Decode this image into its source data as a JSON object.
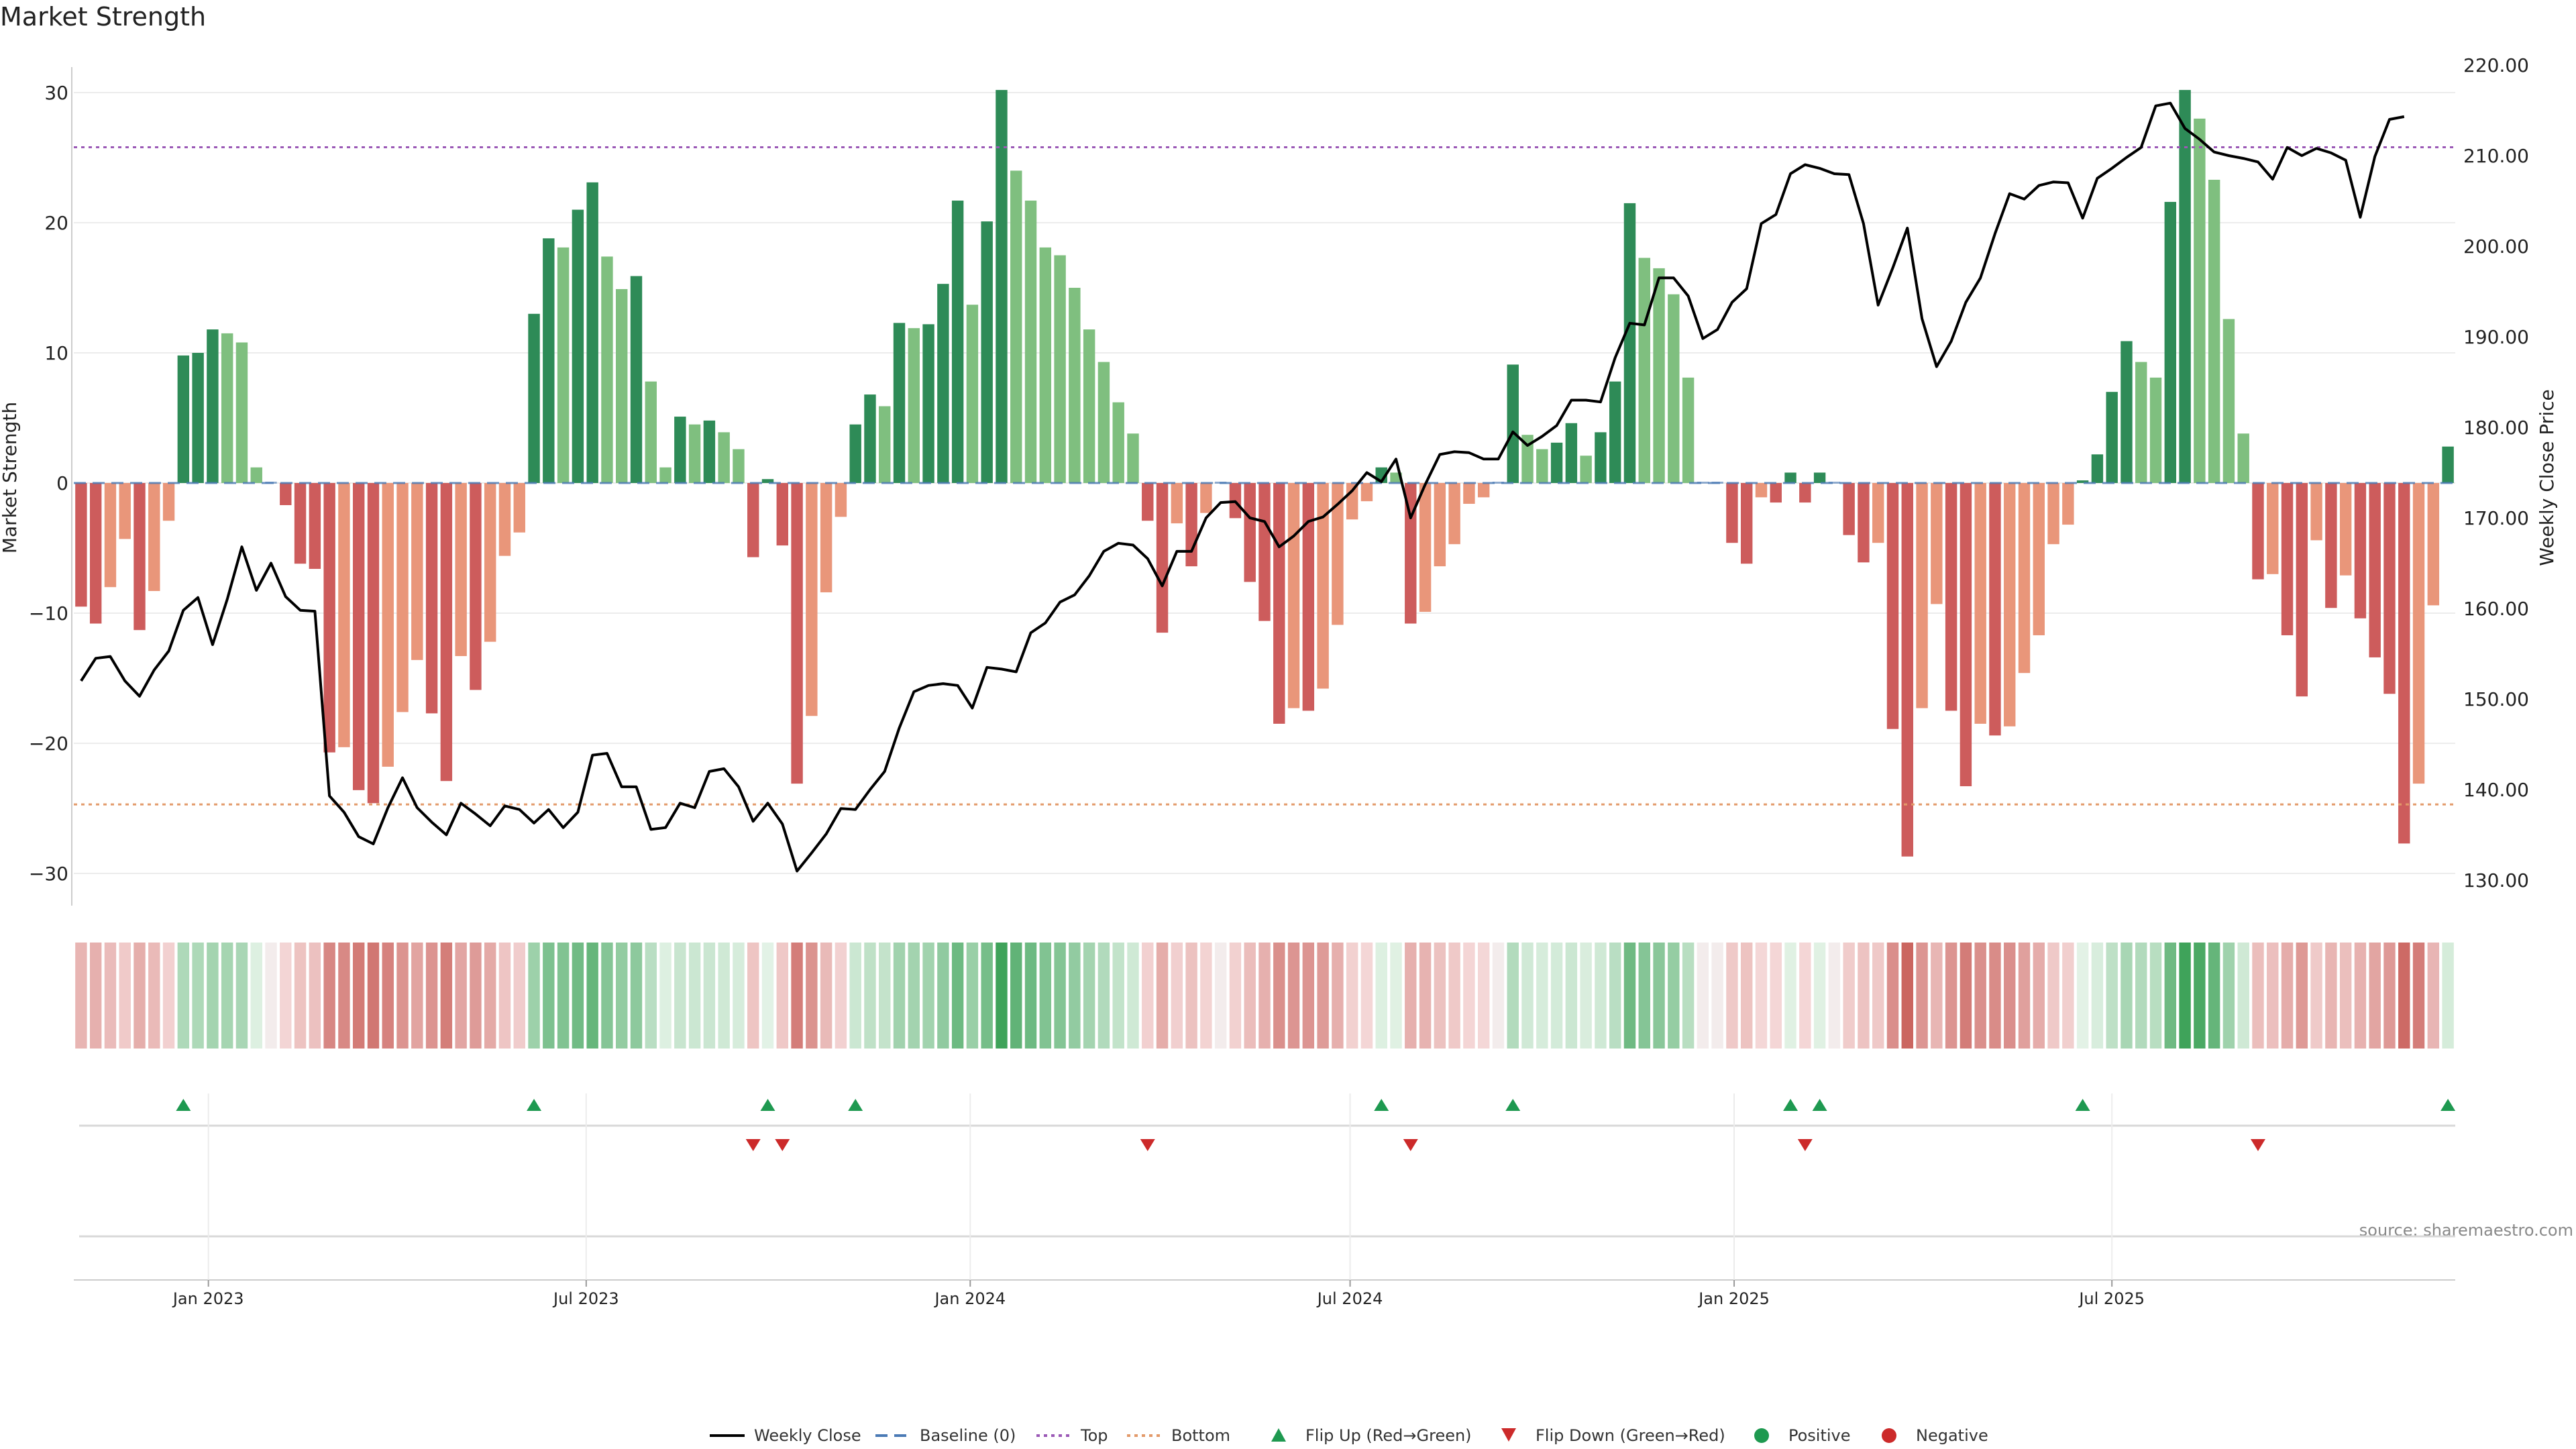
{
  "chart_data": {
    "type": "bar",
    "title": "Market Strength",
    "ylabel": "Market Strength",
    "y2label": "Weekly Close Price",
    "ylim": [
      -32,
      31
    ],
    "y2lim": [
      129,
      220
    ],
    "yticks": [
      "30",
      "20",
      "10",
      "0",
      "−10",
      "−20",
      "−30"
    ],
    "y2ticks": [
      "220.00",
      "210.00",
      "200.00",
      "190.00",
      "180.00",
      "170.00",
      "160.00",
      "150.00",
      "140.00",
      "130.00"
    ],
    "xticks": [
      "Jan 2023",
      "Jul 2023",
      "Jan 2024",
      "Jul 2024",
      "Jan 2025",
      "Jul 2025"
    ],
    "top_level": 25.8,
    "bottom_level": -24.7,
    "source": "source: sharemaestro.com",
    "colors": {
      "strong_pos": "#2e8b57",
      "weak_pos": "#7fbf7f",
      "strong_neg": "#cd5c5c",
      "weak_neg": "#e9967a",
      "price": "#000000",
      "baseline": "#4a7ab5",
      "top": "#9b59b6",
      "bottom": "#e39a6a",
      "flip_up": "#1e9950",
      "flip_down": "#cc2a2a"
    },
    "strength": [
      -9.5,
      -10.8,
      -8.0,
      -4.3,
      -11.3,
      -8.3,
      -2.9,
      9.8,
      10.0,
      11.8,
      11.5,
      10.8,
      1.2,
      0,
      -1.7,
      -6.2,
      -6.6,
      -20.7,
      -20.3,
      -23.6,
      -24.6,
      -21.8,
      -17.6,
      -13.6,
      -17.7,
      -22.9,
      -13.3,
      -15.9,
      -12.2,
      -5.6,
      -3.8,
      13.0,
      18.8,
      18.1,
      21.0,
      23.1,
      17.4,
      14.9,
      15.9,
      7.8,
      1.2,
      5.1,
      4.5,
      4.8,
      3.9,
      2.6,
      -5.7,
      0.3,
      -4.8,
      -23.1,
      -17.9,
      -8.4,
      -2.6,
      4.5,
      6.8,
      5.9,
      12.3,
      11.9,
      12.2,
      15.3,
      21.7,
      13.7,
      20.1,
      30.2,
      24.0,
      21.7,
      18.1,
      17.5,
      15.0,
      11.8,
      9.3,
      6.2,
      3.8,
      -2.9,
      -11.5,
      -3.1,
      -6.4,
      -2.3,
      0,
      -2.7,
      -7.6,
      -10.6,
      -18.5,
      -17.3,
      -17.5,
      -15.8,
      -10.9,
      -2.8,
      -1.4,
      1.2,
      0.8,
      -10.8,
      -9.9,
      -6.4,
      -4.7,
      -1.6,
      -1.1,
      0,
      9.1,
      3.7,
      2.6,
      3.1,
      4.6,
      2.1,
      3.9,
      7.8,
      21.5,
      17.3,
      16.5,
      14.5,
      8.1,
      0,
      0,
      -4.6,
      -6.2,
      -1.1,
      -1.5,
      0.8,
      -1.5,
      0.8,
      0,
      -4.0,
      -6.1,
      -4.6,
      -18.9,
      -28.7,
      -17.3,
      -9.3,
      -17.5,
      -23.3,
      -18.5,
      -19.4,
      -18.7,
      -14.6,
      -11.7,
      -4.7,
      -3.2,
      0.2,
      2.2,
      7.0,
      10.9,
      9.3,
      8.1,
      21.6,
      30.2,
      28.0,
      23.3,
      12.6,
      3.8,
      -7.4,
      -7.0,
      -11.7,
      -16.4,
      -4.4,
      -9.6,
      -7.1,
      -10.4,
      -13.4,
      -16.2,
      -27.7,
      -23.1,
      -9.4,
      2.8
    ],
    "price": [
      152.0,
      154.5,
      154.7,
      152.0,
      150.3,
      153.2,
      155.3,
      159.8,
      161.2,
      156.0,
      161.0,
      166.8,
      162.0,
      165.0,
      161.3,
      159.8,
      159.7,
      139.3,
      137.5,
      134.8,
      134.0,
      138.0,
      141.3,
      138.0,
      136.4,
      135.0,
      138.5,
      137.3,
      136.0,
      138.2,
      137.8,
      136.3,
      137.8,
      135.8,
      137.5,
      143.8,
      144.0,
      140.3,
      140.3,
      135.6,
      135.8,
      138.5,
      138.0,
      142.0,
      142.3,
      140.3,
      136.5,
      138.5,
      136.2,
      131.0,
      133.0,
      135.1,
      137.9,
      137.8,
      140.0,
      142.0,
      146.8,
      150.8,
      151.5,
      151.7,
      151.5,
      149.0,
      153.5,
      153.3,
      153.0,
      157.3,
      158.4,
      160.7,
      161.5,
      163.6,
      166.3,
      167.2,
      167.0,
      165.5,
      162.5,
      166.3,
      166.3,
      170.0,
      171.7,
      171.8,
      170.0,
      169.6,
      166.8,
      168.0,
      169.6,
      170.1,
      171.5,
      173.0,
      175.0,
      174.0,
      176.5,
      170.0,
      173.7,
      177.0,
      177.3,
      177.2,
      176.5,
      176.5,
      179.5,
      178.0,
      179.0,
      180.2,
      183.0,
      183.0,
      182.8,
      187.7,
      191.5,
      191.3,
      196.5,
      196.5,
      194.5,
      189.8,
      190.8,
      193.8,
      195.3,
      202.5,
      203.5,
      208.0,
      209.0,
      208.6,
      208.0,
      207.9,
      202.5,
      193.5,
      197.6,
      202.0,
      192.0,
      186.7,
      189.5,
      193.8,
      196.5,
      201.4,
      205.8,
      205.2,
      206.7,
      207.1,
      207.0,
      203.1,
      207.5,
      208.6,
      209.8,
      210.9,
      215.5,
      215.8,
      213.0,
      211.8,
      210.4,
      210.0,
      209.7,
      209.3,
      207.4,
      210.9,
      210.0,
      210.8,
      210.3,
      209.5,
      203.2,
      209.9,
      214.0,
      214.3
    ]
  },
  "legend": [
    {
      "key": "price",
      "label": "Weekly Close"
    },
    {
      "key": "baseline",
      "label": "Baseline (0)"
    },
    {
      "key": "top",
      "label": "Top"
    },
    {
      "key": "bottom",
      "label": "Bottom"
    },
    {
      "key": "flip_up",
      "label": "Flip Up (Red→Green)"
    },
    {
      "key": "flip_down",
      "label": "Flip Down (Green→Red)"
    },
    {
      "key": "positive",
      "label": "Positive"
    },
    {
      "key": "negative",
      "label": "Negative"
    }
  ]
}
